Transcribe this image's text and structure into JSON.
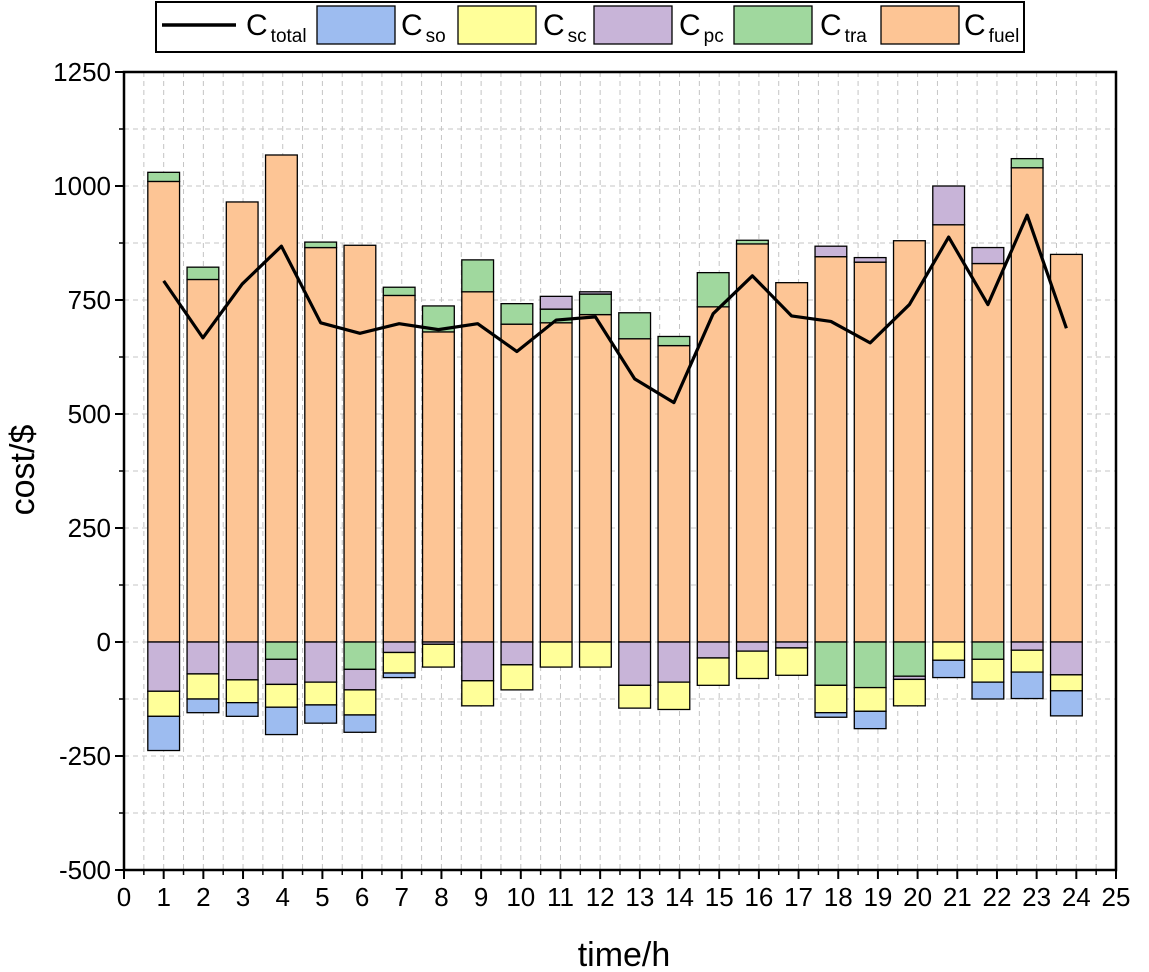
{
  "chart_data": {
    "type": "bar",
    "subtype": "stacked-bar-with-line",
    "xlabel": "time/h",
    "ylabel": "cost/$",
    "xlim": [
      0,
      25
    ],
    "ylim": [
      -500,
      1250
    ],
    "x_ticks": [
      "0",
      "1",
      "2",
      "3",
      "4",
      "5",
      "6",
      "7",
      "8",
      "9",
      "10",
      "11",
      "12",
      "13",
      "14",
      "15",
      "16",
      "17",
      "18",
      "19",
      "20",
      "21",
      "22",
      "23",
      "24",
      "25"
    ],
    "y_ticks": [
      "-500",
      "-250",
      "0",
      "250",
      "500",
      "750",
      "1000",
      "1250"
    ],
    "y_tick_values": [
      -500,
      -250,
      0,
      250,
      500,
      750,
      1000,
      1250
    ],
    "grid": true,
    "legend_position": "top",
    "categories": [
      "1",
      "2",
      "3",
      "4",
      "5",
      "6",
      "7",
      "8",
      "9",
      "10",
      "11",
      "12",
      "13",
      "14",
      "15",
      "16",
      "17",
      "18",
      "19",
      "20",
      "21",
      "22",
      "23",
      "24"
    ],
    "series": [
      {
        "name": "C_fuel",
        "color": "#FDC595",
        "values": [
          1010,
          795,
          965,
          1068,
          865,
          870,
          760,
          680,
          768,
          697,
          700,
          718,
          665,
          650,
          735,
          873,
          788,
          845,
          833,
          880,
          915,
          830,
          1040,
          850
        ]
      },
      {
        "name": "C_tra",
        "color": "#A0D89E",
        "values": [
          20,
          27,
          0,
          -38,
          12,
          -60,
          18,
          57,
          70,
          45,
          30,
          45,
          57,
          20,
          75,
          8,
          0,
          -95,
          -100,
          -75,
          0,
          -38,
          20,
          0
        ]
      },
      {
        "name": "C_pc",
        "color": "#C8B4D8",
        "values": [
          -108,
          -70,
          -83,
          -55,
          -88,
          -45,
          -23,
          -5,
          -85,
          -50,
          28,
          5,
          -95,
          -88,
          -35,
          -20,
          -13,
          23,
          10,
          -7,
          85,
          35,
          -18,
          -72
        ]
      },
      {
        "name": "C_sc",
        "color": "#FFFF99",
        "values": [
          -55,
          -55,
          -50,
          -50,
          -50,
          -55,
          -45,
          -50,
          -55,
          -55,
          -55,
          -55,
          -50,
          -60,
          -60,
          -60,
          -60,
          -60,
          -52,
          -58,
          -40,
          -50,
          -48,
          -35
        ]
      },
      {
        "name": "C_so",
        "color": "#9DBCF0",
        "values": [
          -75,
          -30,
          -30,
          -60,
          -40,
          -38,
          -10,
          0,
          0,
          0,
          0,
          0,
          0,
          0,
          0,
          0,
          0,
          -10,
          -38,
          0,
          -38,
          -37,
          -58,
          -55
        ]
      }
    ],
    "line_series": {
      "name": "C_total",
      "color": "#000000",
      "values": [
        792,
        667,
        785,
        868,
        700,
        677,
        698,
        685,
        698,
        637,
        706,
        713,
        577,
        525,
        720,
        803,
        715,
        703,
        656,
        740,
        888,
        740,
        936,
        688
      ]
    },
    "legend": [
      {
        "base": "C",
        "sub": "total",
        "kind": "line",
        "color": "#000000"
      },
      {
        "base": "C",
        "sub": "so",
        "kind": "box",
        "color": "#9DBCF0"
      },
      {
        "base": "C",
        "sub": "sc",
        "kind": "box",
        "color": "#FFFF99"
      },
      {
        "base": "C",
        "sub": "pc",
        "kind": "box",
        "color": "#C8B4D8"
      },
      {
        "base": "C",
        "sub": "tra",
        "kind": "box",
        "color": "#A0D89E"
      },
      {
        "base": "C",
        "sub": "fuel",
        "kind": "box",
        "color": "#FDC595"
      }
    ]
  }
}
